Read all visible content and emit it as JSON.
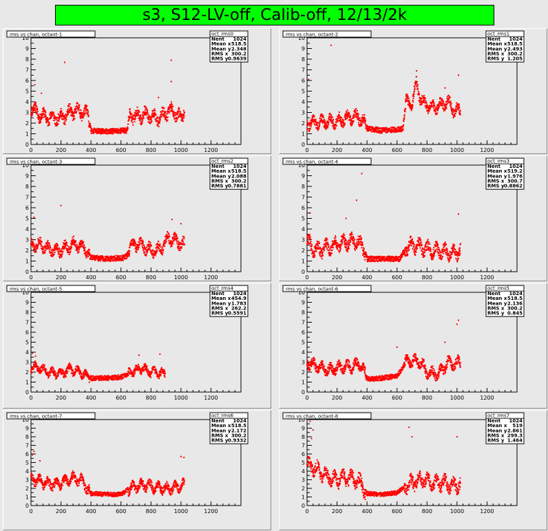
{
  "title": "s3, S12-LV-off, Calib-off, 12/13/2k",
  "colors": {
    "background": "#e8e8e8",
    "title_bg": "#00ff00",
    "marker": "#ff0000",
    "plot_bg": "#e8e8e8"
  },
  "stats_labels": {
    "entries": "Nent",
    "mean_x": "Mean x",
    "mean_y": "Mean y",
    "rms_x": "RMS x",
    "rms_y": "RMS y"
  },
  "chart_data": [
    {
      "type": "scatter",
      "title": "rms vs chan, octant-1",
      "hist_name": "oct_rms0",
      "stats": {
        "entries": "1024",
        "mean_x": "518.5",
        "mean_y": "2.348",
        "rms_x": "300.2",
        "rms_y": "0.9639"
      },
      "xlim": [
        0,
        1400
      ],
      "ylim": [
        0,
        10
      ],
      "x_ticks": [
        "0",
        "200",
        "400",
        "600",
        "800",
        "1000",
        "1200"
      ],
      "y_ticks": [
        "0",
        "1",
        "2",
        "3",
        "4",
        "5",
        "6",
        "7",
        "8",
        "9",
        "10"
      ],
      "profile": [
        [
          0,
          3.5
        ],
        [
          40,
          3.0
        ],
        [
          80,
          2.6
        ],
        [
          140,
          2.5
        ],
        [
          200,
          2.5
        ],
        [
          260,
          3.0
        ],
        [
          320,
          3.2
        ],
        [
          380,
          2.8
        ],
        [
          400,
          1.3
        ],
        [
          500,
          1.2
        ],
        [
          600,
          1.3
        ],
        [
          640,
          1.3
        ],
        [
          660,
          2.8
        ],
        [
          700,
          2.6
        ],
        [
          760,
          2.8
        ],
        [
          800,
          2.6
        ],
        [
          860,
          2.5
        ],
        [
          920,
          3.2
        ],
        [
          960,
          3.0
        ],
        [
          1000,
          2.4
        ],
        [
          1023,
          3.4
        ]
      ],
      "spread": 0.55,
      "seed": 11,
      "outliers": [
        {
          "x": 225,
          "y": 7.7
        },
        {
          "x": 935,
          "y": 7.9
        },
        {
          "x": 935,
          "y": 5.9
        },
        {
          "x": 25,
          "y": 5.6
        },
        {
          "x": 70,
          "y": 4.8
        },
        {
          "x": 850,
          "y": 4.4
        }
      ]
    },
    {
      "type": "scatter",
      "title": "rms vs chan, octant-2",
      "hist_name": "oct_rms1",
      "stats": {
        "entries": "1024",
        "mean_x": "518.5",
        "mean_y": "2.493",
        "rms_x": "300.2",
        "rms_y": "1.205"
      },
      "xlim": [
        0,
        1400
      ],
      "ylim": [
        0,
        10
      ],
      "x_ticks": [
        "0",
        "200",
        "400",
        "600",
        "800",
        "1000",
        "1200"
      ],
      "y_ticks": [
        "0",
        "1",
        "2",
        "3",
        "4",
        "5",
        "6",
        "7",
        "8",
        "9",
        "10"
      ],
      "profile": [
        [
          0,
          2.0
        ],
        [
          100,
          2.1
        ],
        [
          200,
          2.2
        ],
        [
          280,
          2.5
        ],
        [
          340,
          2.6
        ],
        [
          380,
          2.1
        ],
        [
          400,
          1.5
        ],
        [
          500,
          1.3
        ],
        [
          580,
          1.4
        ],
        [
          620,
          1.4
        ],
        [
          640,
          1.5
        ],
        [
          660,
          4.0
        ],
        [
          700,
          3.8
        ],
        [
          730,
          5.8
        ],
        [
          760,
          4.1
        ],
        [
          820,
          3.5
        ],
        [
          880,
          3.6
        ],
        [
          940,
          4.0
        ],
        [
          980,
          3.2
        ],
        [
          1023,
          3.2
        ]
      ],
      "spread": 0.5,
      "seed": 22,
      "outliers": [
        {
          "x": 160,
          "y": 9.3
        },
        {
          "x": 10,
          "y": 6.1
        },
        {
          "x": 1010,
          "y": 6.5
        },
        {
          "x": 730,
          "y": 6.9
        },
        {
          "x": 920,
          "y": 5.3
        }
      ]
    },
    {
      "type": "scatter",
      "title": "rms vs chan, octant-3",
      "hist_name": "oct_rms2",
      "stats": {
        "entries": "1024",
        "mean_x": "518.5",
        "mean_y": "2.088",
        "rms_x": "300.2",
        "rms_y": "0.7881"
      },
      "xlim": [
        0,
        1400
      ],
      "ylim": [
        0,
        10
      ],
      "x_ticks": [
        "0",
        "200",
        "400",
        "600",
        "800",
        "1000",
        "1200"
      ],
      "y_ticks": [
        "0",
        "1",
        "2",
        "3",
        "4",
        "5",
        "6",
        "7",
        "8",
        "9",
        "10"
      ],
      "profile": [
        [
          0,
          2.4
        ],
        [
          60,
          2.6
        ],
        [
          120,
          2.1
        ],
        [
          200,
          2.0
        ],
        [
          280,
          2.6
        ],
        [
          360,
          2.2
        ],
        [
          400,
          1.3
        ],
        [
          500,
          1.2
        ],
        [
          620,
          1.3
        ],
        [
          640,
          1.5
        ],
        [
          660,
          2.4
        ],
        [
          720,
          2.6
        ],
        [
          800,
          2.0
        ],
        [
          860,
          2.1
        ],
        [
          920,
          3.2
        ],
        [
          980,
          2.8
        ],
        [
          1023,
          2.5
        ]
      ],
      "spread": 0.5,
      "seed": 33,
      "outliers": [
        {
          "x": 200,
          "y": 6.2
        },
        {
          "x": 20,
          "y": 5.1
        },
        {
          "x": 940,
          "y": 4.9
        },
        {
          "x": 1000,
          "y": 4.5
        }
      ]
    },
    {
      "type": "scatter",
      "title": "rms vs chan, octant-4",
      "hist_name": "oct_rms3",
      "stats": {
        "entries": "1024",
        "mean_x": "519.2",
        "mean_y": "1.976",
        "rms_x": "300.7",
        "rms_y": "0.8862"
      },
      "xlim": [
        0,
        1400
      ],
      "ylim": [
        0,
        10
      ],
      "x_ticks": [
        "0",
        "200",
        "400",
        "600",
        "800",
        "1000",
        "1200"
      ],
      "y_ticks": [
        "0",
        "1",
        "2",
        "3",
        "4",
        "5",
        "6",
        "7",
        "8",
        "9",
        "10"
      ],
      "profile": [
        [
          0,
          2.8
        ],
        [
          60,
          2.0
        ],
        [
          150,
          2.3
        ],
        [
          260,
          2.8
        ],
        [
          330,
          2.9
        ],
        [
          380,
          2.2
        ],
        [
          400,
          1.2
        ],
        [
          500,
          1.2
        ],
        [
          620,
          1.2
        ],
        [
          660,
          2.3
        ],
        [
          720,
          2.5
        ],
        [
          800,
          2.1
        ],
        [
          880,
          1.9
        ],
        [
          960,
          1.8
        ],
        [
          1023,
          1.9
        ]
      ],
      "spread": 0.6,
      "seed": 44,
      "outliers": [
        {
          "x": 365,
          "y": 9.2
        },
        {
          "x": 330,
          "y": 6.7
        },
        {
          "x": 20,
          "y": 5.5
        },
        {
          "x": 260,
          "y": 5.0
        },
        {
          "x": 1010,
          "y": 5.4
        }
      ]
    },
    {
      "type": "scatter",
      "title": "rms vs chan, octant-5",
      "hist_name": "oct_rms4",
      "stats": {
        "entries": "1024",
        "mean_x": "454.9",
        "mean_y": "1.783",
        "rms_x": "262.2",
        "rms_y": "0.5591"
      },
      "xlim": [
        0,
        1400
      ],
      "ylim": [
        0,
        10
      ],
      "x_ticks": [
        "0",
        "200",
        "400",
        "600",
        "800",
        "1000",
        "1200"
      ],
      "y_ticks": [
        "0",
        "1",
        "2",
        "3",
        "4",
        "5",
        "6",
        "7",
        "8",
        "9",
        "10"
      ],
      "profile": [
        [
          0,
          2.5
        ],
        [
          60,
          2.4
        ],
        [
          120,
          2.0
        ],
        [
          200,
          1.8
        ],
        [
          260,
          2.3
        ],
        [
          330,
          2.0
        ],
        [
          400,
          1.4
        ],
        [
          500,
          1.4
        ],
        [
          600,
          1.5
        ],
        [
          680,
          2.1
        ],
        [
          740,
          2.4
        ],
        [
          800,
          2.0
        ],
        [
          860,
          1.9
        ],
        [
          895,
          1.8
        ]
      ],
      "spread": 0.4,
      "seed": 55,
      "outliers": [
        {
          "x": 10,
          "y": 3.9
        },
        {
          "x": 30,
          "y": 3.6
        },
        {
          "x": 720,
          "y": 3.7
        },
        {
          "x": 860,
          "y": 3.8
        }
      ]
    },
    {
      "type": "scatter",
      "title": "rms vs chan, octant-6",
      "hist_name": "oct_rms5",
      "stats": {
        "entries": "1024",
        "mean_x": "518.5",
        "mean_y": "2.136",
        "rms_x": "300.2",
        "rms_y": "0.845"
      },
      "xlim": [
        0,
        1400
      ],
      "ylim": [
        0,
        10
      ],
      "x_ticks": [
        "0",
        "200",
        "400",
        "600",
        "800",
        "1000",
        "1200"
      ],
      "y_ticks": [
        "0",
        "1",
        "2",
        "3",
        "4",
        "5",
        "6",
        "7",
        "8",
        "9",
        "10"
      ],
      "profile": [
        [
          0,
          3.0
        ],
        [
          60,
          2.6
        ],
        [
          140,
          2.2
        ],
        [
          220,
          2.5
        ],
        [
          300,
          2.6
        ],
        [
          360,
          2.8
        ],
        [
          400,
          1.3
        ],
        [
          500,
          1.4
        ],
        [
          600,
          1.6
        ],
        [
          660,
          3.0
        ],
        [
          700,
          3.2
        ],
        [
          760,
          3.0
        ],
        [
          800,
          1.9
        ],
        [
          880,
          1.8
        ],
        [
          940,
          3.0
        ],
        [
          980,
          2.8
        ],
        [
          1023,
          3.0
        ]
      ],
      "spread": 0.5,
      "seed": 66,
      "outliers": [
        {
          "x": 1010,
          "y": 7.2
        },
        {
          "x": 1000,
          "y": 6.8
        },
        {
          "x": 920,
          "y": 5.0
        },
        {
          "x": 600,
          "y": 4.5
        }
      ]
    },
    {
      "type": "scatter",
      "title": "rms vs chan, octant-7",
      "hist_name": "oct_rms6",
      "stats": {
        "entries": "1024",
        "mean_x": "518.5",
        "mean_y": "2.172",
        "rms_x": "300.2",
        "rms_y": "0.9332"
      },
      "xlim": [
        0,
        1400
      ],
      "ylim": [
        0,
        10
      ],
      "x_ticks": [
        "0",
        "200",
        "400",
        "600",
        "800",
        "1000",
        "1200"
      ],
      "y_ticks": [
        "0",
        "1",
        "2",
        "3",
        "4",
        "5",
        "6",
        "7",
        "8",
        "9",
        "10"
      ],
      "profile": [
        [
          0,
          3.2
        ],
        [
          60,
          2.8
        ],
        [
          120,
          2.5
        ],
        [
          200,
          2.6
        ],
        [
          280,
          3.2
        ],
        [
          340,
          2.9
        ],
        [
          400,
          1.4
        ],
        [
          500,
          1.3
        ],
        [
          600,
          1.3
        ],
        [
          660,
          2.0
        ],
        [
          740,
          2.4
        ],
        [
          820,
          2.2
        ],
        [
          900,
          2.0
        ],
        [
          960,
          2.1
        ],
        [
          1023,
          2.5
        ]
      ],
      "spread": 0.55,
      "seed": 77,
      "outliers": [
        {
          "x": 20,
          "y": 6.3
        },
        {
          "x": 10,
          "y": 5.9
        },
        {
          "x": 1000,
          "y": 5.7
        },
        {
          "x": 1020,
          "y": 5.6
        },
        {
          "x": 60,
          "y": 5.2
        }
      ]
    },
    {
      "type": "scatter",
      "title": "rms vs chan, octant-8",
      "hist_name": "oct_rms7",
      "stats": {
        "entries": "1024",
        "mean_x": "519",
        "mean_y": "2.861",
        "rms_x": "299.3",
        "rms_y": "1.464"
      },
      "xlim": [
        0,
        1400
      ],
      "ylim": [
        0,
        10
      ],
      "x_ticks": [
        "0",
        "200",
        "400",
        "600",
        "800",
        "1000",
        "1200"
      ],
      "y_ticks": [
        "0",
        "1",
        "2",
        "3",
        "4",
        "5",
        "6",
        "7",
        "8",
        "9",
        "10"
      ],
      "profile": [
        [
          0,
          5.0
        ],
        [
          40,
          4.5
        ],
        [
          80,
          4.0
        ],
        [
          120,
          3.5
        ],
        [
          180,
          3.0
        ],
        [
          260,
          3.2
        ],
        [
          340,
          3.0
        ],
        [
          400,
          1.4
        ],
        [
          500,
          1.3
        ],
        [
          600,
          1.5
        ],
        [
          660,
          2.3
        ],
        [
          720,
          2.8
        ],
        [
          780,
          3.0
        ],
        [
          840,
          2.5
        ],
        [
          900,
          2.7
        ],
        [
          960,
          2.4
        ],
        [
          1023,
          2.4
        ]
      ],
      "spread": 0.75,
      "seed": 88,
      "outliers": [
        {
          "x": 20,
          "y": 9.8
        },
        {
          "x": 40,
          "y": 8.8
        },
        {
          "x": 680,
          "y": 9.1
        },
        {
          "x": 700,
          "y": 8.0
        },
        {
          "x": 1000,
          "y": 8.0
        },
        {
          "x": 30,
          "y": 7.8
        }
      ]
    }
  ]
}
